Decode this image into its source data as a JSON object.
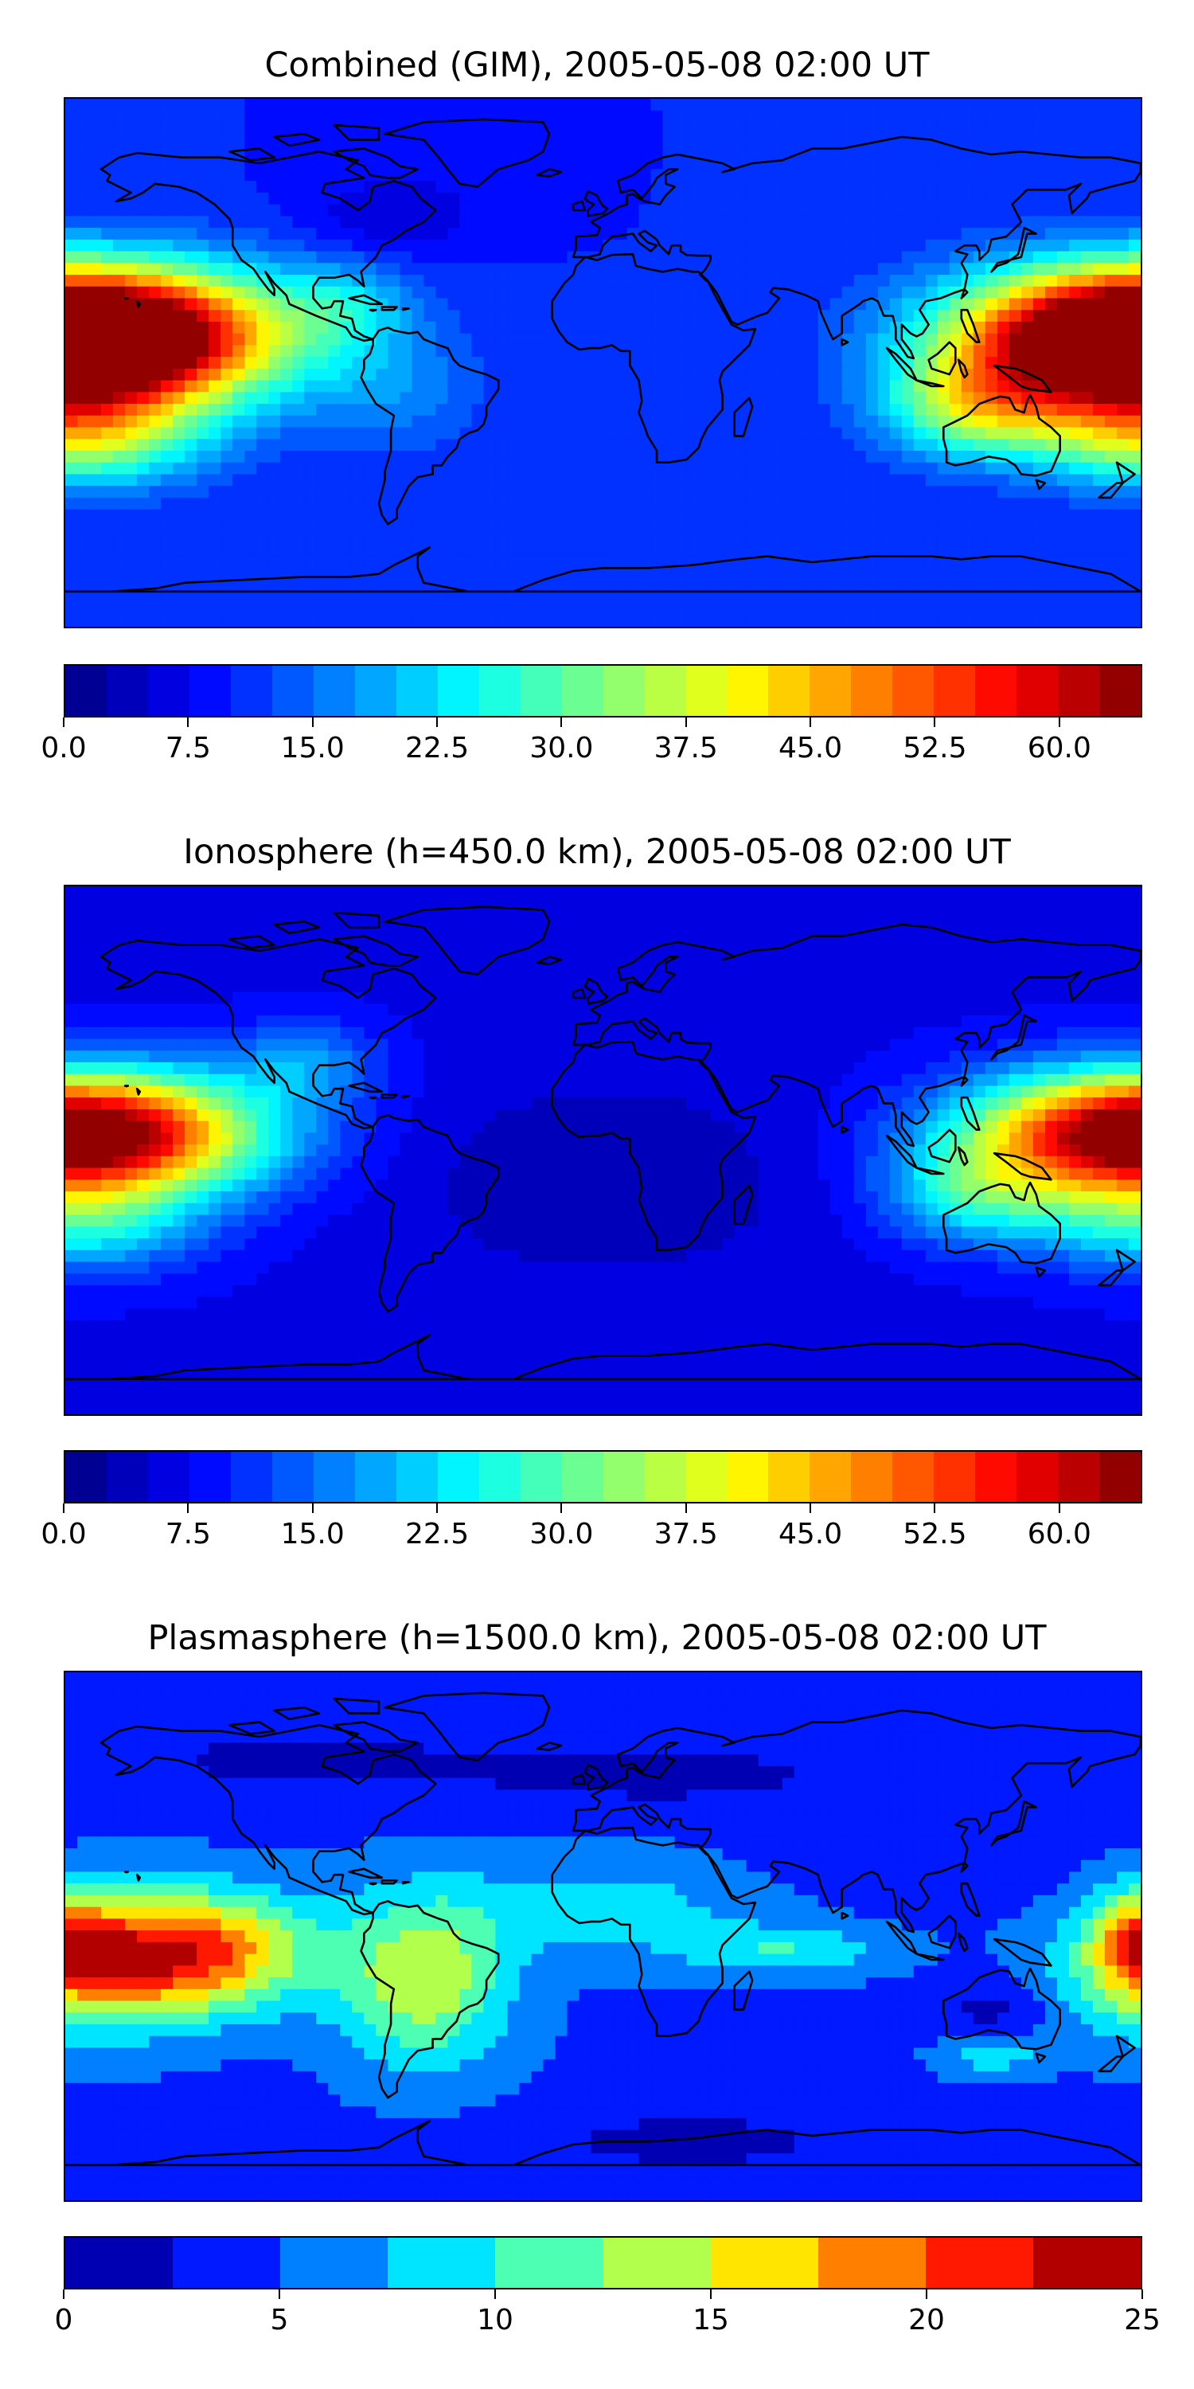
{
  "panels": [
    {
      "title": "Combined (GIM), 2005-05-08 02:00 UT",
      "colorbar": {
        "min": 0,
        "max": 65,
        "levels": 26,
        "ticks": [
          "0.0",
          "7.5",
          "15.0",
          "22.5",
          "30.0",
          "37.5",
          "45.0",
          "52.5",
          "60.0"
        ],
        "tick_values": [
          0,
          7.5,
          15,
          22.5,
          30,
          37.5,
          45,
          52.5,
          60
        ]
      },
      "field": {
        "base": 10,
        "features": [
          {
            "lon": -170,
            "lat": 10,
            "amp": 48,
            "sx": 45,
            "sy": 16
          },
          {
            "lon": 178,
            "lat": 6,
            "amp": 45,
            "sx": 38,
            "sy": 16
          },
          {
            "lon": -175,
            "lat": -25,
            "amp": 24,
            "sx": 28,
            "sy": 12
          },
          {
            "lon": 125,
            "lat": -15,
            "amp": 22,
            "sx": 22,
            "sy": 12
          },
          {
            "lon": -85,
            "lat": 20,
            "amp": 8,
            "sx": 15,
            "sy": 10
          },
          {
            "lon": -70,
            "lat": -10,
            "amp": 6,
            "sx": 20,
            "sy": 15
          },
          {
            "lon": -70,
            "lat": 50,
            "amp": -5,
            "sx": 20,
            "sy": 10
          }
        ]
      }
    },
    {
      "title": "Ionosphere  (h=450.0 km), 2005-05-08 02:00 UT",
      "colorbar": {
        "min": 0,
        "max": 65,
        "levels": 26,
        "ticks": [
          "0.0",
          "7.5",
          "15.0",
          "22.5",
          "30.0",
          "37.5",
          "45.0",
          "52.5",
          "60.0"
        ],
        "tick_values": [
          0,
          7.5,
          15,
          22.5,
          30,
          37.5,
          45,
          52.5,
          60
        ]
      },
      "field": {
        "base": 7,
        "features": [
          {
            "lon": -172,
            "lat": 5,
            "amp": 32,
            "sx": 42,
            "sy": 15
          },
          {
            "lon": 180,
            "lat": 6,
            "amp": 36,
            "sx": 38,
            "sy": 14
          },
          {
            "lon": -175,
            "lat": -25,
            "amp": 16,
            "sx": 28,
            "sy": 12
          },
          {
            "lon": 125,
            "lat": -15,
            "amp": 16,
            "sx": 22,
            "sy": 12
          },
          {
            "lon": 0,
            "lat": -10,
            "amp": -4,
            "sx": 50,
            "sy": 25
          },
          {
            "lon": -100,
            "lat": 30,
            "amp": 10,
            "sx": 18,
            "sy": 10
          }
        ]
      }
    },
    {
      "title": "Plasmasphere (h=1500.0 km), 2005-05-08 02:00 UT",
      "colorbar": {
        "min": 0,
        "max": 25,
        "levels": 10,
        "ticks": [
          "0",
          "5",
          "10",
          "15",
          "20",
          "25"
        ],
        "tick_values": [
          0,
          5,
          10,
          15,
          20,
          25
        ]
      },
      "field": {
        "base": 4.5,
        "features": [
          {
            "lon": -140,
            "lat": -5,
            "amp": 17,
            "sx": 28,
            "sy": 14
          },
          {
            "lon": -60,
            "lat": -15,
            "amp": 10,
            "sx": 20,
            "sy": 20
          },
          {
            "lon": -175,
            "lat": -15,
            "amp": 7,
            "sx": 25,
            "sy": 15
          },
          {
            "lon": 180,
            "lat": 0,
            "amp": 9,
            "sx": 12,
            "sy": 12
          },
          {
            "lon": 60,
            "lat": -5,
            "amp": 5,
            "sx": 25,
            "sy": 6
          },
          {
            "lon": 0,
            "lat": 10,
            "amp": 4,
            "sx": 40,
            "sy": 12
          },
          {
            "lon": 130,
            "lat": -40,
            "amp": 5,
            "sx": 12,
            "sy": 5
          },
          {
            "lon": -100,
            "lat": 60,
            "amp": -3,
            "sx": 40,
            "sy": 8
          },
          {
            "lon": 20,
            "lat": 55,
            "amp": -3,
            "sx": 50,
            "sy": 8
          },
          {
            "lon": 100,
            "lat": 25,
            "amp": -2,
            "sx": 30,
            "sy": 8
          },
          {
            "lon": 130,
            "lat": -25,
            "amp": -3,
            "sx": 15,
            "sy": 8
          },
          {
            "lon": 30,
            "lat": -70,
            "amp": -3,
            "sx": 40,
            "sy": 8
          }
        ]
      }
    }
  ],
  "colors": {
    "jet": [
      "#00007f",
      "#0000ff",
      "#007fff",
      "#00ffff",
      "#7fff7f",
      "#ffff00",
      "#ff7f00",
      "#ff0000",
      "#7f0000"
    ],
    "coastline": "#000000"
  }
}
